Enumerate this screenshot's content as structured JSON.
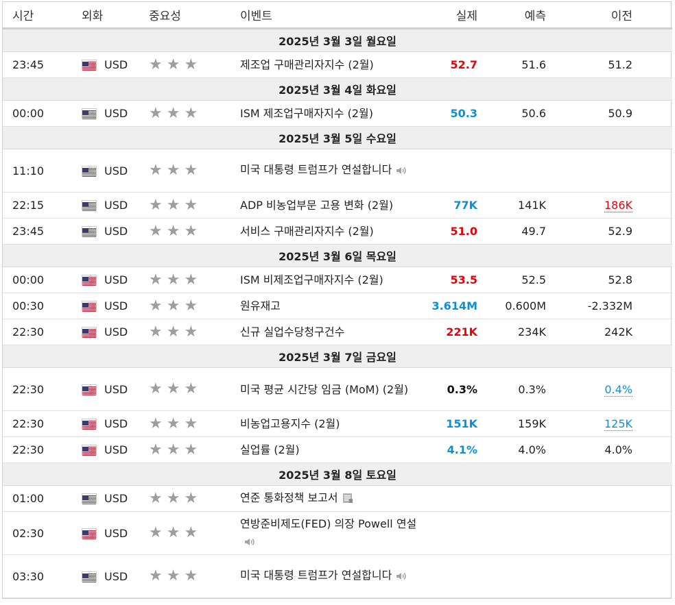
{
  "headers": {
    "time": "시간",
    "currency": "외화",
    "importance": "중요성",
    "event": "이벤트",
    "actual": "실제",
    "forecast": "예측",
    "previous": "이전"
  },
  "colors": {
    "flag_blue": "#3c3b6e",
    "flag_red": "#b22234",
    "positive": "#0c8fd8",
    "negative": "#e0040b",
    "star": "#9e9e9e"
  },
  "rows": [
    {
      "type": "date",
      "label": "2025년 3월 3일 월요일"
    },
    {
      "type": "event",
      "time": "23:45",
      "currency": "USD",
      "event": "제조업 구매관리자지수 (2월)",
      "actual": "52.7",
      "actual_style": "red",
      "forecast": "51.6",
      "previous": "51.2",
      "previous_style": ""
    },
    {
      "type": "date",
      "label": "2025년 3월 4일 화요일"
    },
    {
      "type": "event",
      "time": "00:00",
      "currency": "USD",
      "event": "ISM 제조업구매자지수 (2월)",
      "actual": "50.3",
      "actual_style": "blue",
      "forecast": "50.6",
      "previous": "50.9",
      "previous_style": ""
    },
    {
      "type": "date",
      "label": "2025년 3월 5일 수요일"
    },
    {
      "type": "event",
      "tall": true,
      "time": "11:10",
      "currency": "USD",
      "event": "미국 대통령 트럼프가 연설합니다",
      "icon": "speaker-icon",
      "actual": "",
      "forecast": "",
      "previous": ""
    },
    {
      "type": "event",
      "time": "22:15",
      "currency": "USD",
      "event": "ADP 비농업부문 고용 변화 (2월)",
      "actual": "77K",
      "actual_style": "blue",
      "forecast": "141K",
      "previous": "186K",
      "previous_style": "prev-red"
    },
    {
      "type": "event",
      "time": "23:45",
      "currency": "USD",
      "event": "서비스 구매관리자지수 (2월)",
      "actual": "51.0",
      "actual_style": "red",
      "forecast": "49.7",
      "previous": "52.9",
      "previous_style": ""
    },
    {
      "type": "date",
      "label": "2025년 3월 6일 목요일"
    },
    {
      "type": "event",
      "time": "00:00",
      "currency": "USD",
      "event": "ISM 비제조업구매자지수 (2월)",
      "actual": "53.5",
      "actual_style": "red",
      "forecast": "52.5",
      "previous": "52.8",
      "previous_style": ""
    },
    {
      "type": "event",
      "time": "00:30",
      "currency": "USD",
      "event": "원유재고",
      "actual": "3.614M",
      "actual_style": "blue",
      "forecast": "0.600M",
      "previous": "-2.332M",
      "previous_style": ""
    },
    {
      "type": "event",
      "time": "22:30",
      "currency": "USD",
      "event": "신규 실업수당청구건수",
      "actual": "221K",
      "actual_style": "red",
      "forecast": "234K",
      "previous": "242K",
      "previous_style": ""
    },
    {
      "type": "date",
      "label": "2025년 3월 7일 금요일"
    },
    {
      "type": "event",
      "tall": true,
      "time": "22:30",
      "currency": "USD",
      "event": "미국 평균 시간당 임금 (MoM) (2월)",
      "actual": "0.3%",
      "actual_style": "black",
      "forecast": "0.3%",
      "previous": "0.4%",
      "previous_style": "prev-blue"
    },
    {
      "type": "event",
      "time": "22:30",
      "currency": "USD",
      "event": "비농업고용지수 (2월)",
      "actual": "151K",
      "actual_style": "blue",
      "forecast": "159K",
      "previous": "125K",
      "previous_style": "prev-blue"
    },
    {
      "type": "event",
      "time": "22:30",
      "currency": "USD",
      "event": "실업률 (2월)",
      "actual": "4.1%",
      "actual_style": "blue",
      "forecast": "4.0%",
      "previous": "4.0%",
      "previous_style": ""
    },
    {
      "type": "date",
      "label": "2025년 3월 8일 토요일"
    },
    {
      "type": "event",
      "time": "01:00",
      "currency": "USD",
      "event": "연준 통화정책 보고서",
      "icon": "document-icon",
      "actual": "",
      "forecast": "",
      "previous": ""
    },
    {
      "type": "event",
      "tall": true,
      "time": "02:30",
      "currency": "USD",
      "event": "연방준비제도(FED) 의장 Powell 연설",
      "icon": "speaker-icon",
      "actual": "",
      "forecast": "",
      "previous": ""
    },
    {
      "type": "event",
      "tall": true,
      "time": "03:30",
      "currency": "USD",
      "event": "미국 대통령 트럼프가 연설합니다",
      "icon": "speaker-icon",
      "actual": "",
      "forecast": "",
      "previous": ""
    }
  ]
}
